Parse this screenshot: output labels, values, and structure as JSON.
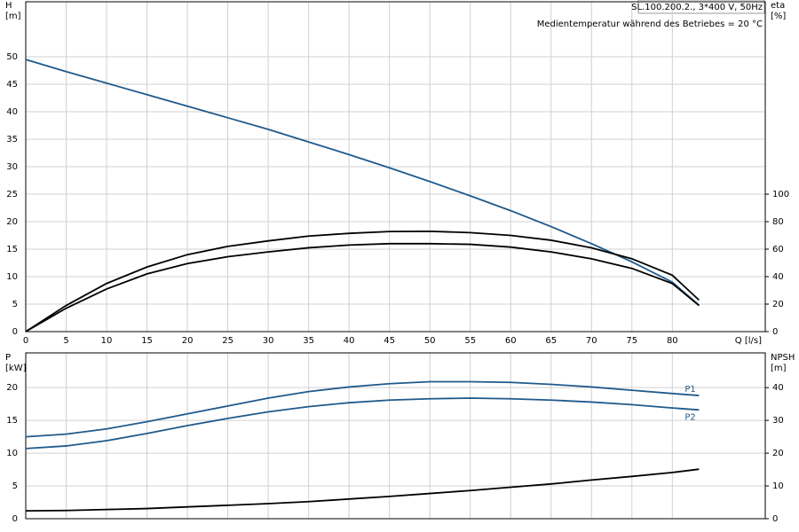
{
  "chart_data": [
    {
      "type": "line",
      "x": [
        0,
        5,
        10,
        15,
        20,
        25,
        30,
        35,
        40,
        45,
        50,
        55,
        60,
        65,
        70,
        75,
        80,
        83.3
      ],
      "xlim": [
        0,
        91.5
      ],
      "xticks": [
        0,
        5,
        10,
        15,
        20,
        25,
        30,
        35,
        40,
        45,
        50,
        55,
        60,
        65,
        70,
        75,
        80
      ],
      "xlabel": "Q [l/s]",
      "ylabel": [
        "H",
        "[m]"
      ],
      "ylim": [
        0,
        60
      ],
      "yticks": [
        0,
        5,
        10,
        15,
        20,
        25,
        30,
        35,
        40,
        45,
        50
      ],
      "y2label": [
        "eta",
        "[%]"
      ],
      "y2lim": [
        0,
        240
      ],
      "y2ticks": [
        0,
        20,
        40,
        60,
        80,
        100
      ],
      "annotations": [
        "SL.100.200.2., 3*400 V, 50Hz",
        "Medientemperatur während des Betriebes = 20 °C"
      ],
      "grid": true,
      "series": [
        {
          "color": "#1f5a8c",
          "values": [
            49.5,
            47.3,
            45.2,
            43.1,
            41,
            38.9,
            36.8,
            34.5,
            32.2,
            29.8,
            27.3,
            24.7,
            22,
            19.1,
            16,
            12.7,
            9,
            4.8
          ]
        },
        {
          "color": "#000000",
          "axis": "y2",
          "values": [
            0,
            19,
            35,
            47,
            56,
            62,
            66,
            69.5,
            71.5,
            72.8,
            73,
            72,
            70,
            66.5,
            61,
            53,
            41,
            23
          ]
        },
        {
          "color": "#000000",
          "axis": "y2",
          "values": [
            0,
            17,
            31,
            42,
            49.5,
            54.5,
            58,
            61,
            63,
            64,
            64,
            63.5,
            61.5,
            58,
            53,
            46,
            35,
            19
          ]
        }
      ]
    },
    {
      "type": "line",
      "x": [
        0,
        5,
        10,
        15,
        20,
        25,
        30,
        35,
        40,
        45,
        50,
        55,
        60,
        65,
        70,
        75,
        80,
        83.3
      ],
      "xlim": [
        0,
        91.5
      ],
      "ylabel": [
        "P",
        "[kW]"
      ],
      "ylim": [
        0,
        25.3
      ],
      "yticks": [
        0,
        5,
        10,
        15,
        20
      ],
      "y2label": [
        "NPSH",
        "[m]"
      ],
      "y2lim": [
        0,
        50.6
      ],
      "y2ticks": [
        0,
        10,
        20,
        30,
        40
      ],
      "grid": true,
      "series": [
        {
          "name": "P1",
          "color": "#1f5a8c",
          "values": [
            12.5,
            12.9,
            13.7,
            14.8,
            16,
            17.2,
            18.4,
            19.4,
            20.1,
            20.6,
            20.9,
            20.9,
            20.8,
            20.5,
            20.1,
            19.6,
            19.1,
            18.8
          ]
        },
        {
          "name": "P2",
          "color": "#1f5a8c",
          "values": [
            10.7,
            11.1,
            11.9,
            13,
            14.2,
            15.3,
            16.3,
            17.1,
            17.7,
            18.1,
            18.3,
            18.4,
            18.3,
            18.1,
            17.8,
            17.4,
            16.9,
            16.6
          ]
        },
        {
          "color": "#000000",
          "axis": "y2",
          "values": [
            2.4,
            2.5,
            2.8,
            3.1,
            3.6,
            4.1,
            4.6,
            5.2,
            6,
            6.8,
            7.7,
            8.6,
            9.6,
            10.6,
            11.8,
            12.9,
            14.1,
            15.1
          ]
        }
      ]
    }
  ]
}
